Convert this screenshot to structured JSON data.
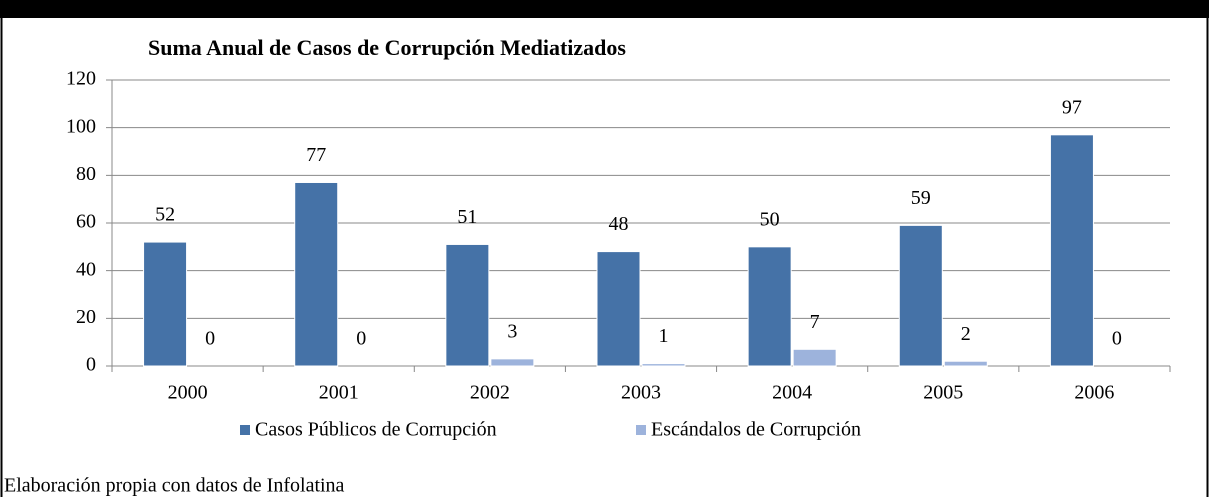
{
  "chart_data": {
    "type": "bar",
    "title": "Suma Anual de Casos de Corrupción Mediatizados",
    "categories": [
      "2000",
      "2001",
      "2002",
      "2003",
      "2004",
      "2005",
      "2006"
    ],
    "series": [
      {
        "name": "Casos Públicos de Corrupción",
        "color": "#4572a7",
        "values": [
          52,
          77,
          51,
          48,
          50,
          59,
          97
        ]
      },
      {
        "name": "Escándalos de Corrupción",
        "color": "#9db3dc",
        "values": [
          0,
          0,
          3,
          1,
          7,
          2,
          0
        ]
      }
    ],
    "ylim": [
      0,
      120
    ],
    "yticks": [
      0,
      20,
      40,
      60,
      80,
      100,
      120
    ],
    "grid": true,
    "legend": "bottom",
    "note": "Elaboración propia con datos de Infolatina"
  }
}
